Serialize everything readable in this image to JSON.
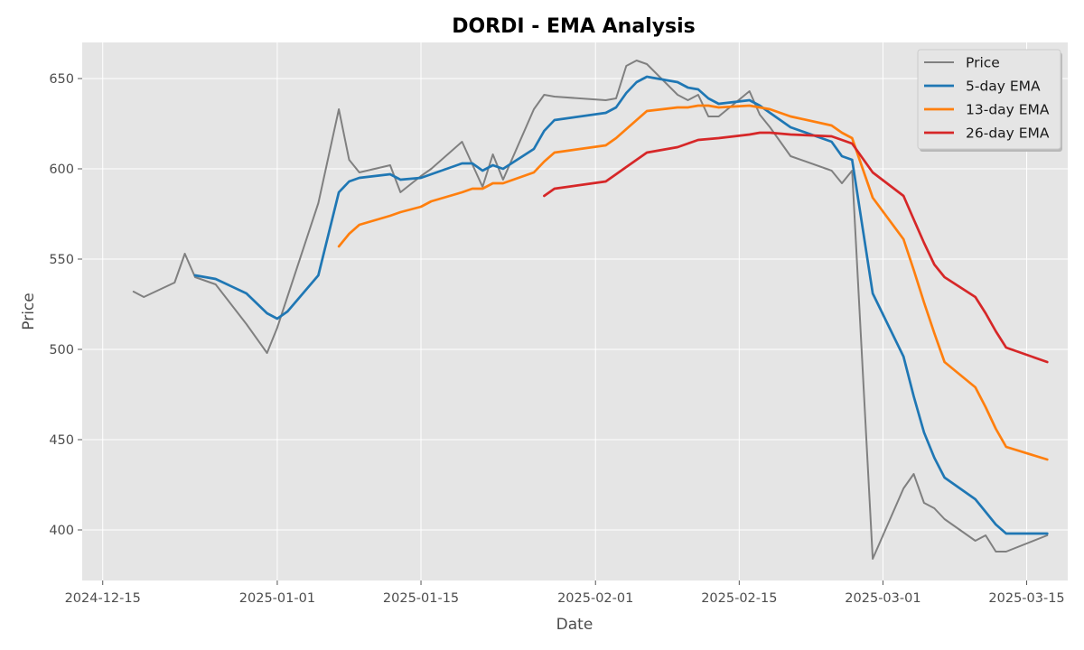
{
  "chart_data": {
    "type": "line",
    "title": "DORDI - EMA Analysis",
    "xlabel": "Date",
    "ylabel": "Price",
    "xlim": [
      "2024-12-13",
      "2025-03-19"
    ],
    "ylim": [
      372,
      670
    ],
    "x_ticks": [
      "2024-12-15",
      "2025-01-01",
      "2025-01-15",
      "2025-02-01",
      "2025-02-15",
      "2025-03-01",
      "2025-03-15"
    ],
    "x_tick_labels": [
      "2024-12-15",
      "2025-01-01",
      "2025-01-15",
      "2025-02-01",
      "2025-02-15",
      "2025-03-01",
      "2025-03-15"
    ],
    "y_ticks": [
      400,
      450,
      500,
      550,
      600,
      650
    ],
    "y_tick_labels": [
      "400",
      "450",
      "500",
      "550",
      "600",
      "650"
    ],
    "grid": true,
    "legend_position": "top-right",
    "series": [
      {
        "name": "Price",
        "color": "#808080",
        "points": [
          [
            "2024-12-18",
            532
          ],
          [
            "2024-12-19",
            529
          ],
          [
            "2024-12-22",
            537
          ],
          [
            "2024-12-23",
            553
          ],
          [
            "2024-12-24",
            540
          ],
          [
            "2024-12-26",
            536
          ],
          [
            "2024-12-29",
            514
          ],
          [
            "2024-12-31",
            498
          ],
          [
            "2025-01-01",
            512
          ],
          [
            "2025-01-05",
            581
          ],
          [
            "2025-01-07",
            633
          ],
          [
            "2025-01-08",
            605
          ],
          [
            "2025-01-09",
            598
          ],
          [
            "2025-01-12",
            602
          ],
          [
            "2025-01-13",
            587
          ],
          [
            "2025-01-15",
            596
          ],
          [
            "2025-01-16",
            600
          ],
          [
            "2025-01-19",
            615
          ],
          [
            "2025-01-21",
            590
          ],
          [
            "2025-01-22",
            608
          ],
          [
            "2025-01-23",
            594
          ],
          [
            "2025-01-26",
            633
          ],
          [
            "2025-01-27",
            641
          ],
          [
            "2025-01-28",
            640
          ],
          [
            "2025-02-02",
            638
          ],
          [
            "2025-02-03",
            639
          ],
          [
            "2025-02-04",
            657
          ],
          [
            "2025-02-05",
            660
          ],
          [
            "2025-02-06",
            658
          ],
          [
            "2025-02-09",
            641
          ],
          [
            "2025-02-10",
            638
          ],
          [
            "2025-02-11",
            641
          ],
          [
            "2025-02-12",
            629
          ],
          [
            "2025-02-13",
            629
          ],
          [
            "2025-02-16",
            643
          ],
          [
            "2025-02-17",
            630
          ],
          [
            "2025-02-18",
            623
          ],
          [
            "2025-02-20",
            607
          ],
          [
            "2025-02-24",
            599
          ],
          [
            "2025-02-25",
            592
          ],
          [
            "2025-02-26",
            599
          ],
          [
            "2025-02-28",
            384
          ],
          [
            "2025-03-03",
            423
          ],
          [
            "2025-03-04",
            431
          ],
          [
            "2025-03-05",
            415
          ],
          [
            "2025-03-06",
            412
          ],
          [
            "2025-03-07",
            406
          ],
          [
            "2025-03-10",
            394
          ],
          [
            "2025-03-11",
            397
          ],
          [
            "2025-03-12",
            388
          ],
          [
            "2025-03-13",
            388
          ],
          [
            "2025-03-17",
            397
          ]
        ]
      },
      {
        "name": "5-day EMA",
        "color": "#1f77b4",
        "points": [
          [
            "2024-12-24",
            541
          ],
          [
            "2024-12-26",
            539
          ],
          [
            "2024-12-29",
            531
          ],
          [
            "2024-12-31",
            520
          ],
          [
            "2025-01-01",
            517
          ],
          [
            "2025-01-02",
            521
          ],
          [
            "2025-01-05",
            541
          ],
          [
            "2025-01-07",
            587
          ],
          [
            "2025-01-08",
            593
          ],
          [
            "2025-01-09",
            595
          ],
          [
            "2025-01-12",
            597
          ],
          [
            "2025-01-13",
            594
          ],
          [
            "2025-01-15",
            595
          ],
          [
            "2025-01-16",
            597
          ],
          [
            "2025-01-19",
            603
          ],
          [
            "2025-01-20",
            603
          ],
          [
            "2025-01-21",
            599
          ],
          [
            "2025-01-22",
            602
          ],
          [
            "2025-01-23",
            600
          ],
          [
            "2025-01-26",
            611
          ],
          [
            "2025-01-27",
            621
          ],
          [
            "2025-01-28",
            627
          ],
          [
            "2025-02-02",
            631
          ],
          [
            "2025-02-03",
            634
          ],
          [
            "2025-02-04",
            642
          ],
          [
            "2025-02-05",
            648
          ],
          [
            "2025-02-06",
            651
          ],
          [
            "2025-02-09",
            648
          ],
          [
            "2025-02-10",
            645
          ],
          [
            "2025-02-11",
            644
          ],
          [
            "2025-02-12",
            639
          ],
          [
            "2025-02-13",
            636
          ],
          [
            "2025-02-16",
            638
          ],
          [
            "2025-02-17",
            635
          ],
          [
            "2025-02-18",
            631
          ],
          [
            "2025-02-20",
            623
          ],
          [
            "2025-02-24",
            615
          ],
          [
            "2025-02-25",
            607
          ],
          [
            "2025-02-26",
            605
          ],
          [
            "2025-02-28",
            531
          ],
          [
            "2025-03-03",
            496
          ],
          [
            "2025-03-04",
            474
          ],
          [
            "2025-03-05",
            454
          ],
          [
            "2025-03-06",
            440
          ],
          [
            "2025-03-07",
            429
          ],
          [
            "2025-03-10",
            417
          ],
          [
            "2025-03-11",
            410
          ],
          [
            "2025-03-12",
            403
          ],
          [
            "2025-03-13",
            398
          ],
          [
            "2025-03-17",
            398
          ]
        ]
      },
      {
        "name": "13-day EMA",
        "color": "#ff7f0e",
        "points": [
          [
            "2025-01-07",
            557
          ],
          [
            "2025-01-08",
            564
          ],
          [
            "2025-01-09",
            569
          ],
          [
            "2025-01-12",
            574
          ],
          [
            "2025-01-13",
            576
          ],
          [
            "2025-01-15",
            579
          ],
          [
            "2025-01-16",
            582
          ],
          [
            "2025-01-19",
            587
          ],
          [
            "2025-01-20",
            589
          ],
          [
            "2025-01-21",
            589
          ],
          [
            "2025-01-22",
            592
          ],
          [
            "2025-01-23",
            592
          ],
          [
            "2025-01-26",
            598
          ],
          [
            "2025-01-27",
            604
          ],
          [
            "2025-01-28",
            609
          ],
          [
            "2025-02-02",
            613
          ],
          [
            "2025-02-03",
            617
          ],
          [
            "2025-02-04",
            622
          ],
          [
            "2025-02-05",
            627
          ],
          [
            "2025-02-06",
            632
          ],
          [
            "2025-02-09",
            634
          ],
          [
            "2025-02-10",
            634
          ],
          [
            "2025-02-11",
            635
          ],
          [
            "2025-02-12",
            635
          ],
          [
            "2025-02-13",
            634
          ],
          [
            "2025-02-16",
            635
          ],
          [
            "2025-02-17",
            634
          ],
          [
            "2025-02-18",
            633
          ],
          [
            "2025-02-20",
            629
          ],
          [
            "2025-02-24",
            624
          ],
          [
            "2025-02-25",
            620
          ],
          [
            "2025-02-26",
            617
          ],
          [
            "2025-02-28",
            584
          ],
          [
            "2025-03-03",
            561
          ],
          [
            "2025-03-04",
            544
          ],
          [
            "2025-03-05",
            526
          ],
          [
            "2025-03-06",
            509
          ],
          [
            "2025-03-07",
            493
          ],
          [
            "2025-03-10",
            479
          ],
          [
            "2025-03-11",
            468
          ],
          [
            "2025-03-12",
            456
          ],
          [
            "2025-03-13",
            446
          ],
          [
            "2025-03-17",
            439
          ]
        ]
      },
      {
        "name": "26-day EMA",
        "color": "#d62728",
        "points": [
          [
            "2025-01-27",
            585
          ],
          [
            "2025-01-28",
            589
          ],
          [
            "2025-02-02",
            593
          ],
          [
            "2025-02-03",
            597
          ],
          [
            "2025-02-04",
            601
          ],
          [
            "2025-02-05",
            605
          ],
          [
            "2025-02-06",
            609
          ],
          [
            "2025-02-09",
            612
          ],
          [
            "2025-02-10",
            614
          ],
          [
            "2025-02-11",
            616
          ],
          [
            "2025-02-13",
            617
          ],
          [
            "2025-02-16",
            619
          ],
          [
            "2025-02-17",
            620
          ],
          [
            "2025-02-18",
            620
          ],
          [
            "2025-02-20",
            619
          ],
          [
            "2025-02-24",
            618
          ],
          [
            "2025-02-25",
            616
          ],
          [
            "2025-02-26",
            614
          ],
          [
            "2025-02-28",
            598
          ],
          [
            "2025-03-03",
            585
          ],
          [
            "2025-03-04",
            572
          ],
          [
            "2025-03-05",
            559
          ],
          [
            "2025-03-06",
            547
          ],
          [
            "2025-03-07",
            540
          ],
          [
            "2025-03-10",
            529
          ],
          [
            "2025-03-11",
            520
          ],
          [
            "2025-03-12",
            510
          ],
          [
            "2025-03-13",
            501
          ],
          [
            "2025-03-17",
            493
          ]
        ]
      }
    ]
  }
}
